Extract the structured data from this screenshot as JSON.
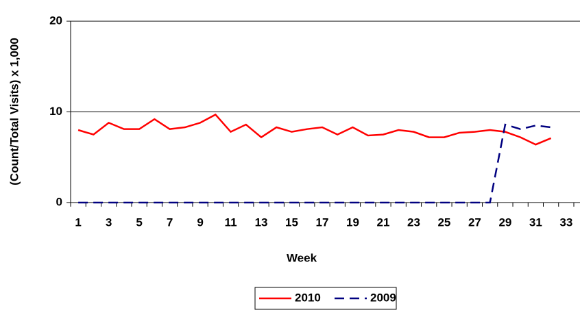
{
  "chart_data": {
    "type": "line",
    "y_label": "(Count/Total Visits) x 1,000",
    "x_label": "Week",
    "categories": [
      "1",
      null,
      "3",
      null,
      "5",
      null,
      "7",
      null,
      "9",
      null,
      "11",
      null,
      "13",
      null,
      "15",
      null,
      "17",
      null,
      "19",
      null,
      "21",
      null,
      "23",
      null,
      "25",
      null,
      "27",
      null,
      "29",
      null,
      "31",
      null,
      "33"
    ],
    "series": [
      {
        "name": "2010",
        "color": "#ff0000",
        "dashed": false,
        "values": [
          8.0,
          7.5,
          8.8,
          8.1,
          8.1,
          9.2,
          8.1,
          8.3,
          8.8,
          9.7,
          7.8,
          8.6,
          7.2,
          8.3,
          7.8,
          8.1,
          8.3,
          7.5,
          8.3,
          7.4,
          7.5,
          8.0,
          7.8,
          7.2,
          7.2,
          7.7,
          7.8,
          8.0,
          7.8,
          7.2,
          6.4,
          7.1,
          null
        ]
      },
      {
        "name": "2009",
        "color": "#000080",
        "dashed": true,
        "values": [
          0,
          0,
          0,
          0,
          0,
          0,
          0,
          0,
          0,
          0,
          0,
          0,
          0,
          0,
          0,
          0,
          0,
          0,
          0,
          0,
          0,
          0,
          0,
          0,
          0,
          0,
          0,
          0,
          8.6,
          8.1,
          8.5,
          8.3,
          null
        ]
      }
    ],
    "ylim": [
      0,
      20
    ],
    "yticks": [
      0,
      10,
      20
    ],
    "grid": true,
    "legend": "bottom"
  }
}
